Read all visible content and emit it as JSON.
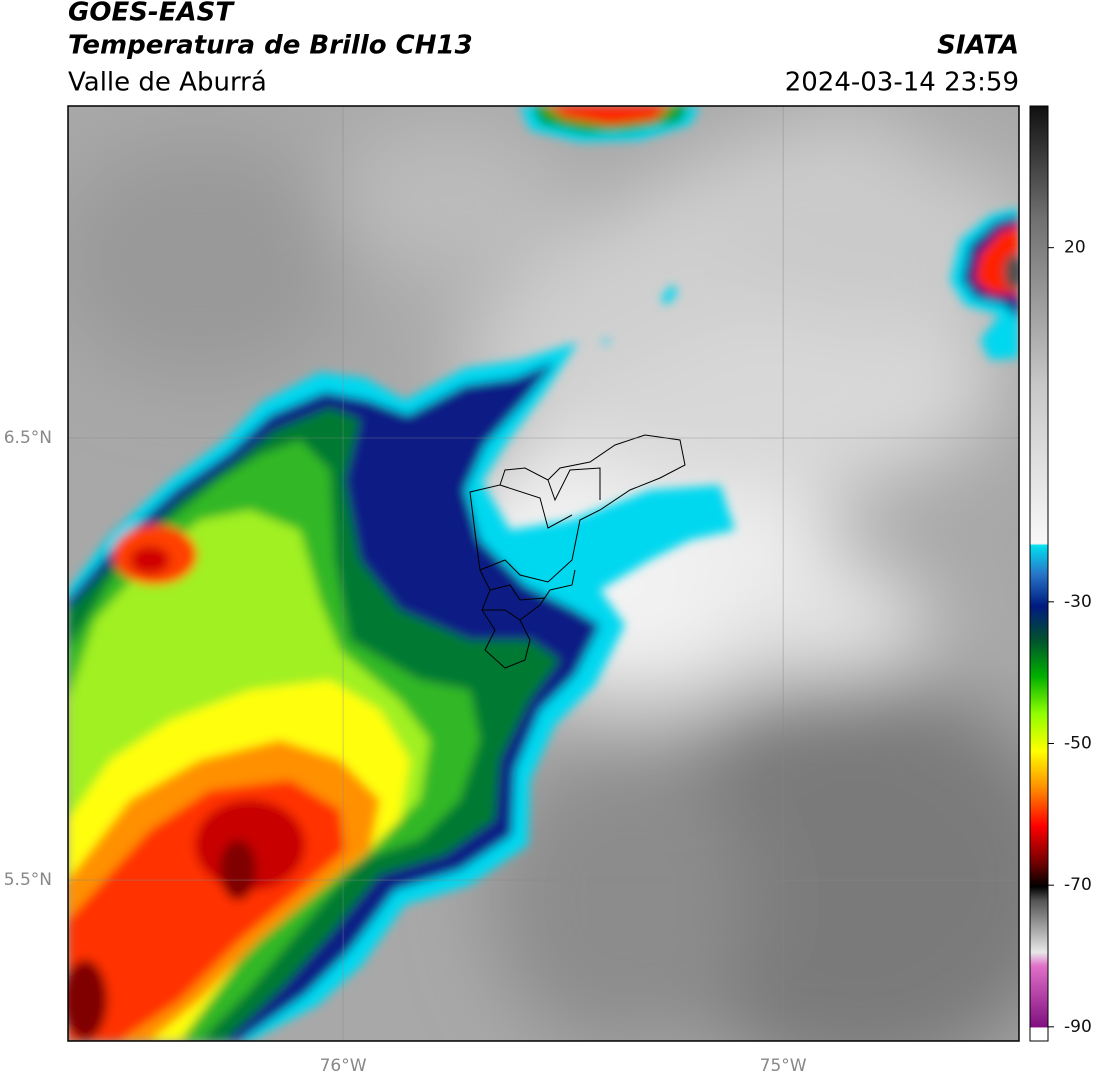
{
  "title": "GOES-EAST",
  "subtitle": "Temperatura de Brillo CH13",
  "region": "Valle de Aburrá",
  "source": "SIATA",
  "timestamp": "2024-03-14 23:59",
  "chart_data": {
    "type": "map",
    "xlim": [
      -76.625,
      -74.464
    ],
    "ylim": [
      5.136,
      7.251
    ],
    "xticks": [
      {
        "value": -76,
        "label": "76°W"
      },
      {
        "value": -75,
        "label": "75°W"
      }
    ],
    "yticks": [
      {
        "value": 6.5,
        "label": "6.5°N"
      },
      {
        "value": 5.5,
        "label": "5.5°N"
      }
    ],
    "grid": true,
    "colorbar": {
      "lim": [
        -92,
        40
      ],
      "ticks": [
        20,
        -30,
        -50,
        -70,
        -90
      ]
    }
  }
}
